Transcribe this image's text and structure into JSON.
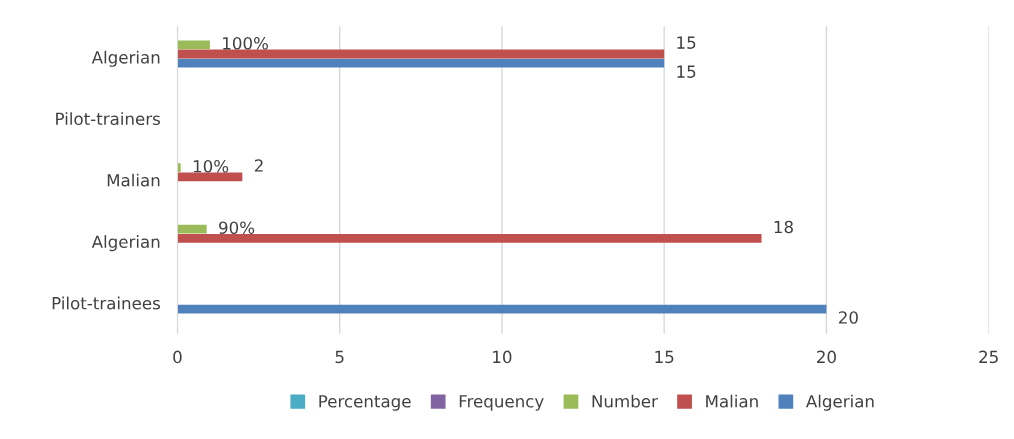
{
  "chart_data": {
    "type": "bar",
    "orientation": "horizontal",
    "categories": [
      "Algerian",
      "Pilot-trainers",
      "Malian",
      "Algerian",
      "Pilot-trainees"
    ],
    "series": [
      {
        "name": "Algerian",
        "color": "#4f81bd",
        "values": [
          15,
          null,
          null,
          null,
          20
        ],
        "value_labels": [
          "15",
          null,
          null,
          null,
          "20"
        ]
      },
      {
        "name": "Malian",
        "color": "#c0504d",
        "values": [
          15,
          null,
          2,
          18,
          null
        ],
        "value_labels": [
          "15",
          null,
          "2",
          "18",
          null
        ]
      },
      {
        "name": "Number",
        "color": "#9bbb59",
        "values": [
          1,
          null,
          0.1,
          0.9,
          null
        ],
        "value_labels": [
          "100%",
          null,
          "10%",
          "90%",
          null
        ]
      },
      {
        "name": "Frequency",
        "color": "#8064a2",
        "values": [
          null,
          null,
          null,
          null,
          null
        ]
      },
      {
        "name": "Percentage",
        "color": "#4bacc6",
        "values": [
          null,
          null,
          null,
          null,
          null
        ]
      }
    ],
    "xlim": [
      0,
      25
    ],
    "xticks": [
      0,
      5,
      10,
      15,
      20,
      25
    ],
    "grid": "x",
    "legend": "bottom"
  }
}
